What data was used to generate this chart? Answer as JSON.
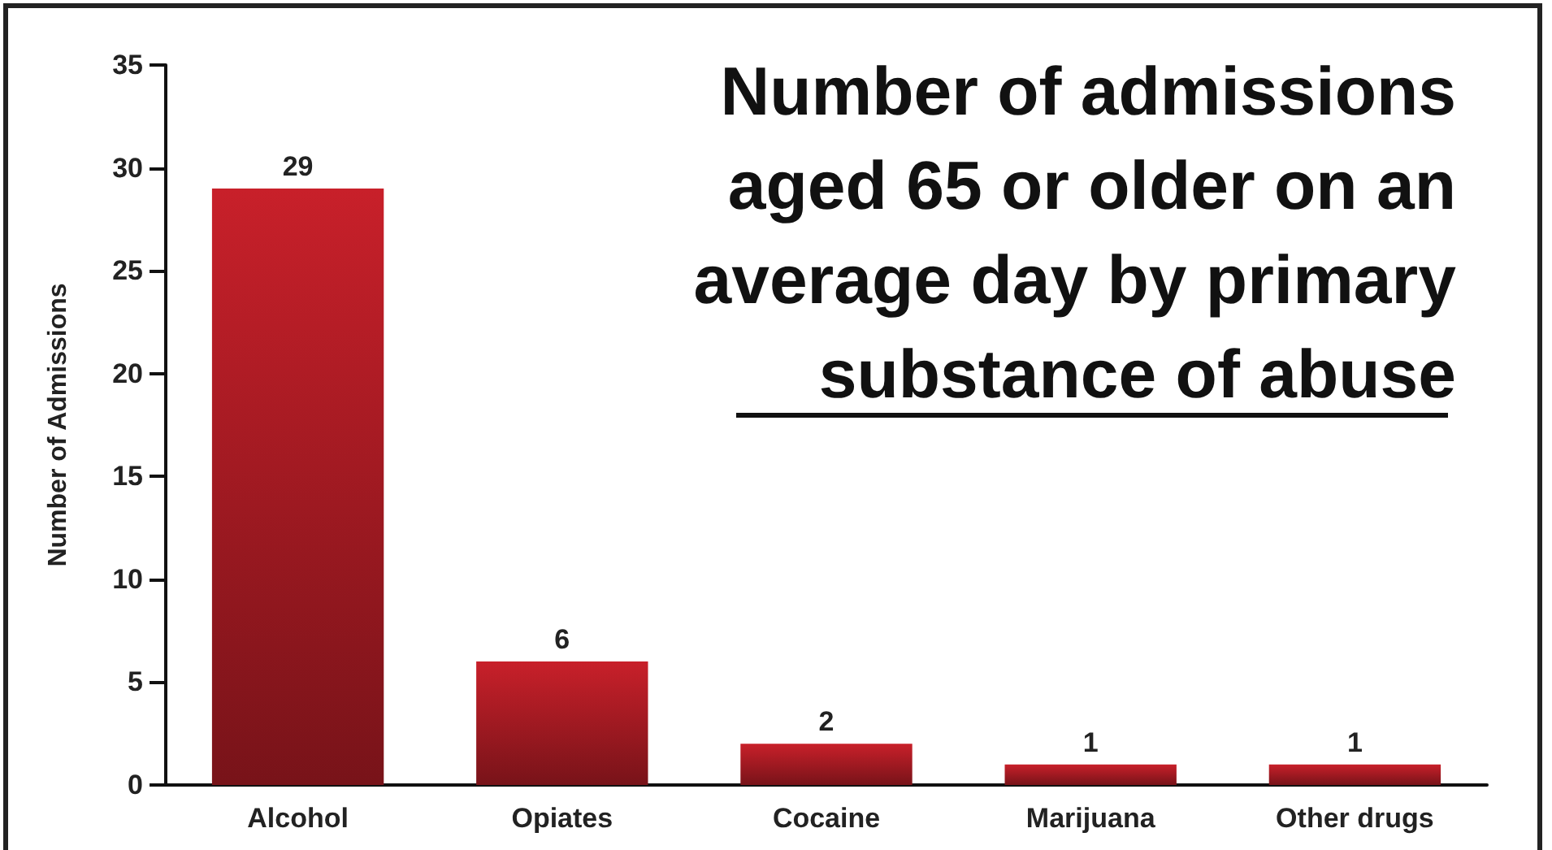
{
  "chart_data": {
    "type": "bar",
    "title": "Number of admissions\naged 65 or older on an\naverage day by primary\nsubstance of abuse",
    "ylabel": "Number of Admissions",
    "categories": [
      "Alcohol",
      "Opiates",
      "Cocaine",
      "Marijuana",
      "Other drugs"
    ],
    "values": [
      29,
      6,
      2,
      1,
      1
    ],
    "color": "#c8202a",
    "ylim": [
      0,
      35
    ],
    "yticks": [
      0,
      5,
      10,
      15,
      20,
      25,
      30,
      35
    ],
    "grid": false,
    "data_labels": true
  }
}
